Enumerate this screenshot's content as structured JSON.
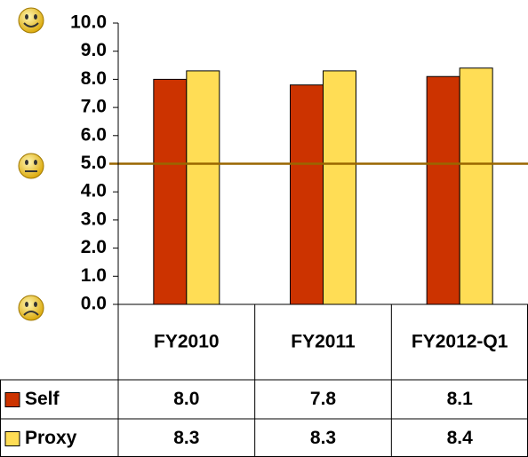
{
  "chart_data": {
    "type": "bar",
    "categories": [
      "FY2010",
      "FY2011",
      "FY2012-Q1"
    ],
    "series": [
      {
        "name": "Self",
        "color": "#cc3300",
        "values": [
          8.0,
          7.8,
          8.1
        ],
        "value_labels": [
          "8.0",
          "7.8",
          "8.1"
        ]
      },
      {
        "name": "Proxy",
        "color": "#ffdd55",
        "values": [
          8.3,
          8.3,
          8.4
        ],
        "value_labels": [
          "8.3",
          "8.3",
          "8.4"
        ]
      }
    ],
    "ylim": [
      0,
      10
    ],
    "yticks": [
      {
        "value": 0,
        "label": "0.0"
      },
      {
        "value": 1,
        "label": "1.0"
      },
      {
        "value": 2,
        "label": "2.0"
      },
      {
        "value": 3,
        "label": "3.0"
      },
      {
        "value": 4,
        "label": "4.0"
      },
      {
        "value": 5,
        "label": "5.0"
      },
      {
        "value": 6,
        "label": "6.0"
      },
      {
        "value": 7,
        "label": "7.0"
      },
      {
        "value": 8,
        "label": "8.0"
      },
      {
        "value": 9,
        "label": "9.0"
      },
      {
        "value": 10,
        "label": "10.0"
      }
    ],
    "reference_line": 5,
    "reference_color": "#996600"
  }
}
